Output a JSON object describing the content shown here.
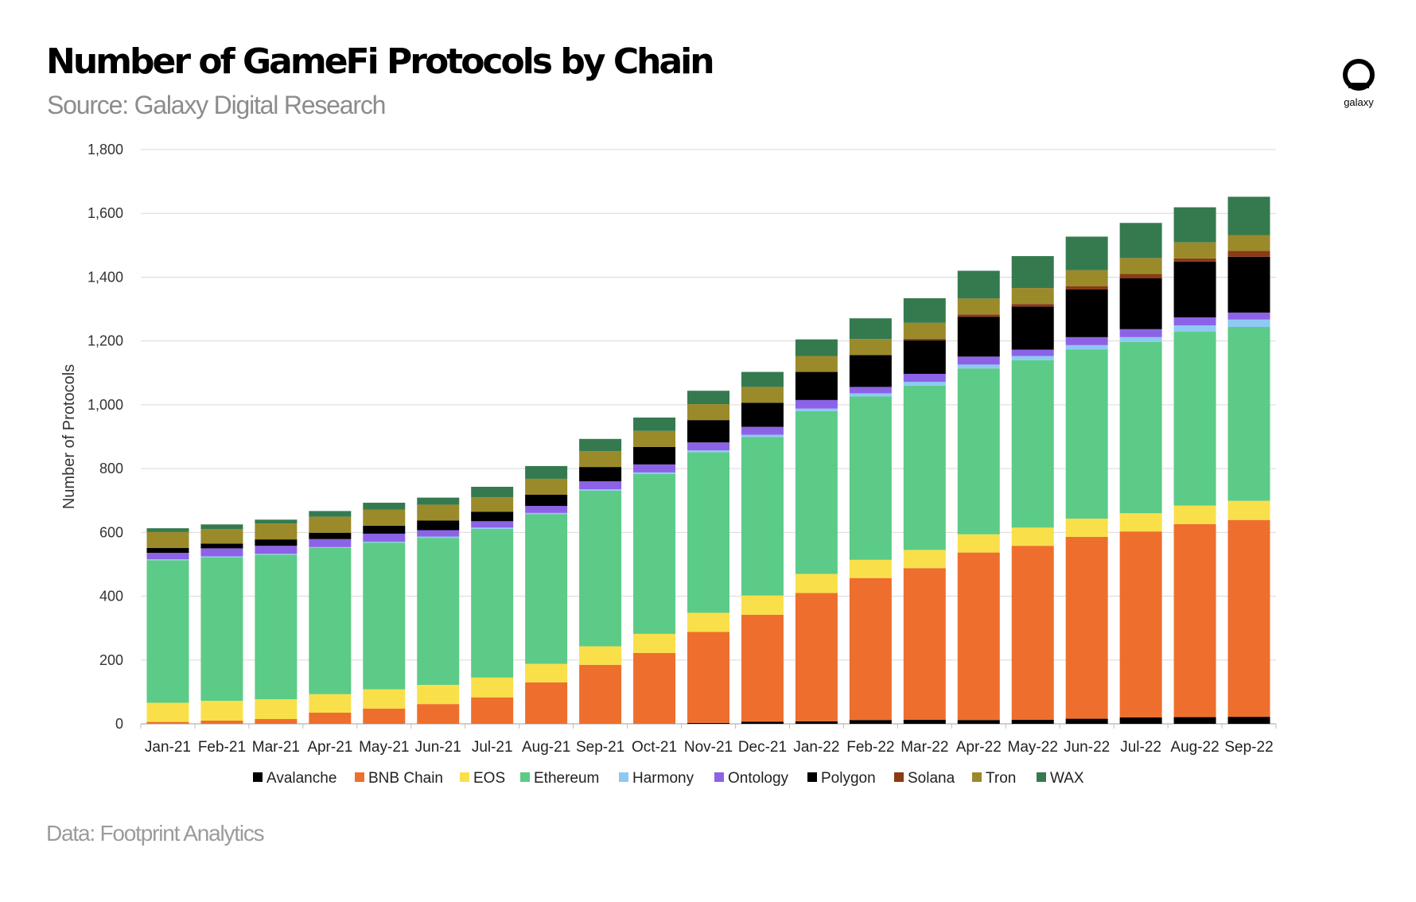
{
  "header": {
    "title": "Number of GameFi Protocols by Chain",
    "subtitle": "Source: Galaxy Digital Research",
    "logo_text": "galaxy"
  },
  "footer": {
    "text": "Data: Footprint Analytics"
  },
  "colors": {
    "Avalanche": "#000000",
    "BNB Chain": "#ee6f2d",
    "EOS": "#f9e04a",
    "Ethereum": "#5ccb87",
    "Harmony": "#8ec9f3",
    "Ontology": "#8c63e6",
    "Polygon": "#000000",
    "Solana": "#8b3a14",
    "Tron": "#9b8a2a",
    "WAX": "#357a4f"
  },
  "chart_data": {
    "type": "bar",
    "stacked": true,
    "title": "Number of GameFi Protocols by Chain",
    "xlabel": "",
    "ylabel": "Number of Protocols",
    "ylim": [
      0,
      1800
    ],
    "yticks": [
      0,
      200,
      400,
      600,
      800,
      1000,
      1200,
      1400,
      1600,
      1800
    ],
    "ytick_labels": [
      "0",
      "200",
      "400",
      "600",
      "800",
      "1,000",
      "1,200",
      "1,400",
      "1,600",
      "1,800"
    ],
    "grid": true,
    "legend_position": "bottom",
    "categories": [
      "Jan-21",
      "Feb-21",
      "Mar-21",
      "Apr-21",
      "May-21",
      "Jun-21",
      "Jul-21",
      "Aug-21",
      "Sep-21",
      "Oct-21",
      "Nov-21",
      "Dec-21",
      "Jan-22",
      "Feb-22",
      "Mar-22",
      "Apr-22",
      "May-22",
      "Jun-22",
      "Jul-22",
      "Aug-22",
      "Sep-22"
    ],
    "series": [
      {
        "name": "Avalanche",
        "values": [
          0,
          0,
          0,
          0,
          0,
          0,
          0,
          0,
          0,
          0,
          3,
          7,
          8,
          12,
          13,
          12,
          13,
          16,
          20,
          21,
          22
        ]
      },
      {
        "name": "BNB Chain",
        "values": [
          6,
          10,
          15,
          35,
          48,
          62,
          83,
          130,
          185,
          222,
          285,
          335,
          402,
          445,
          475,
          525,
          545,
          570,
          583,
          605,
          617
        ]
      },
      {
        "name": "EOS",
        "values": [
          60,
          62,
          62,
          58,
          60,
          60,
          62,
          58,
          58,
          60,
          60,
          60,
          60,
          57,
          57,
          57,
          57,
          57,
          57,
          58,
          60
        ]
      },
      {
        "name": "Ethereum",
        "values": [
          447,
          450,
          453,
          458,
          460,
          461,
          466,
          469,
          488,
          501,
          503,
          497,
          510,
          512,
          515,
          520,
          525,
          530,
          537,
          545,
          545
        ]
      },
      {
        "name": "Harmony",
        "values": [
          3,
          3,
          3,
          3,
          3,
          4,
          4,
          4,
          4,
          5,
          6,
          7,
          8,
          10,
          12,
          12,
          13,
          14,
          15,
          20,
          23
        ]
      },
      {
        "name": "Ontology",
        "values": [
          20,
          25,
          25,
          25,
          25,
          20,
          20,
          22,
          25,
          25,
          25,
          25,
          27,
          20,
          25,
          25,
          20,
          25,
          25,
          25,
          22
        ]
      },
      {
        "name": "Polygon",
        "values": [
          15,
          15,
          20,
          20,
          25,
          30,
          30,
          35,
          45,
          55,
          70,
          75,
          88,
          100,
          105,
          125,
          135,
          150,
          160,
          175,
          175
        ]
      },
      {
        "name": "Solana",
        "values": [
          0,
          0,
          0,
          0,
          0,
          0,
          0,
          0,
          0,
          0,
          0,
          0,
          0,
          0,
          5,
          7,
          8,
          10,
          13,
          10,
          18
        ]
      },
      {
        "name": "Tron",
        "values": [
          50,
          45,
          50,
          50,
          50,
          50,
          45,
          50,
          50,
          50,
          50,
          50,
          50,
          50,
          50,
          50,
          50,
          50,
          50,
          50,
          50
        ]
      },
      {
        "name": "WAX",
        "values": [
          12,
          15,
          12,
          18,
          22,
          22,
          33,
          40,
          38,
          42,
          42,
          47,
          52,
          65,
          77,
          87,
          100,
          105,
          110,
          110,
          120
        ]
      }
    ]
  }
}
